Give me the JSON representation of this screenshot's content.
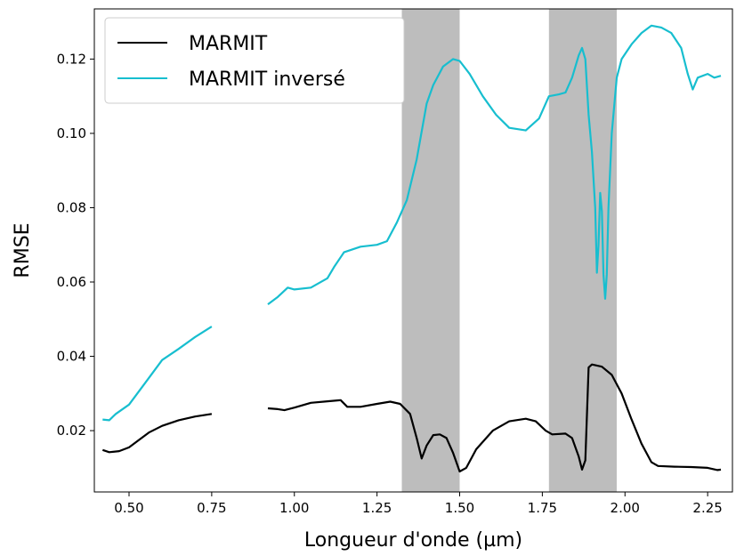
{
  "chart_data": {
    "type": "line",
    "xlabel": "Longueur d'onde (µm)",
    "ylabel": "RMSE",
    "xlim": [
      0.395,
      2.325
    ],
    "ylim": [
      0.0035,
      0.1335
    ],
    "xticks": [
      0.5,
      0.75,
      1.0,
      1.25,
      1.5,
      1.75,
      2.0,
      2.25
    ],
    "xtick_labels": [
      "0.50",
      "0.75",
      "1.00",
      "1.25",
      "1.50",
      "1.75",
      "2.00",
      "2.25"
    ],
    "yticks": [
      0.02,
      0.04,
      0.06,
      0.08,
      0.1,
      0.12
    ],
    "ytick_labels": [
      "0.02",
      "0.04",
      "0.06",
      "0.08",
      "0.10",
      "0.12"
    ],
    "legend_position": "top-left",
    "grid": false,
    "shaded_bands": [
      {
        "x0": 1.325,
        "x1": 1.5,
        "color": "#bdbdbd"
      },
      {
        "x0": 1.77,
        "x1": 1.975,
        "color": "#bdbdbd"
      }
    ],
    "series": [
      {
        "name": "MARMIT",
        "color": "#000000",
        "segments": [
          [
            [
              0.42,
              0.0148
            ],
            [
              0.44,
              0.0142
            ],
            [
              0.47,
              0.0145
            ],
            [
              0.5,
              0.0155
            ],
            [
              0.53,
              0.0175
            ],
            [
              0.56,
              0.0195
            ],
            [
              0.6,
              0.0213
            ],
            [
              0.65,
              0.0228
            ],
            [
              0.7,
              0.0238
            ],
            [
              0.75,
              0.0245
            ]
          ],
          [
            [
              0.92,
              0.026
            ],
            [
              0.95,
              0.0258
            ],
            [
              0.97,
              0.0255
            ],
            [
              1.0,
              0.0262
            ],
            [
              1.05,
              0.0275
            ],
            [
              1.1,
              0.0279
            ],
            [
              1.14,
              0.0282
            ],
            [
              1.16,
              0.0264
            ],
            [
              1.2,
              0.0264
            ],
            [
              1.25,
              0.0272
            ],
            [
              1.29,
              0.0278
            ],
            [
              1.32,
              0.0272
            ],
            [
              1.35,
              0.0245
            ],
            [
              1.37,
              0.018
            ],
            [
              1.385,
              0.0125
            ],
            [
              1.4,
              0.016
            ],
            [
              1.42,
              0.0188
            ],
            [
              1.44,
              0.019
            ],
            [
              1.46,
              0.018
            ],
            [
              1.48,
              0.014
            ],
            [
              1.5,
              0.009
            ],
            [
              1.52,
              0.01
            ],
            [
              1.55,
              0.015
            ],
            [
              1.6,
              0.02
            ],
            [
              1.65,
              0.0225
            ],
            [
              1.7,
              0.0232
            ],
            [
              1.73,
              0.0225
            ],
            [
              1.76,
              0.02
            ],
            [
              1.78,
              0.019
            ],
            [
              1.82,
              0.0192
            ],
            [
              1.84,
              0.018
            ],
            [
              1.86,
              0.013
            ],
            [
              1.87,
              0.0095
            ],
            [
              1.88,
              0.012
            ],
            [
              1.89,
              0.037
            ],
            [
              1.9,
              0.0378
            ],
            [
              1.93,
              0.0372
            ],
            [
              1.96,
              0.035
            ],
            [
              1.99,
              0.03
            ],
            [
              2.02,
              0.023
            ],
            [
              2.05,
              0.0165
            ],
            [
              2.08,
              0.0115
            ],
            [
              2.1,
              0.0105
            ],
            [
              2.15,
              0.0103
            ],
            [
              2.2,
              0.0102
            ],
            [
              2.25,
              0.01
            ],
            [
              2.28,
              0.0094
            ],
            [
              2.29,
              0.0095
            ]
          ]
        ]
      },
      {
        "name": "MARMIT inversé",
        "color": "#17becf",
        "segments": [
          [
            [
              0.42,
              0.023
            ],
            [
              0.44,
              0.0228
            ],
            [
              0.46,
              0.0245
            ],
            [
              0.5,
              0.027
            ],
            [
              0.55,
              0.033
            ],
            [
              0.6,
              0.039
            ],
            [
              0.65,
              0.042
            ],
            [
              0.7,
              0.0452
            ],
            [
              0.75,
              0.048
            ]
          ],
          [
            [
              0.92,
              0.054
            ],
            [
              0.95,
              0.056
            ],
            [
              0.98,
              0.0585
            ],
            [
              1.0,
              0.058
            ],
            [
              1.05,
              0.0585
            ],
            [
              1.1,
              0.061
            ],
            [
              1.12,
              0.064
            ],
            [
              1.15,
              0.068
            ],
            [
              1.2,
              0.0695
            ],
            [
              1.25,
              0.07
            ],
            [
              1.28,
              0.071
            ],
            [
              1.31,
              0.076
            ],
            [
              1.34,
              0.082
            ],
            [
              1.37,
              0.093
            ],
            [
              1.4,
              0.108
            ],
            [
              1.42,
              0.113
            ],
            [
              1.45,
              0.118
            ],
            [
              1.48,
              0.12
            ],
            [
              1.5,
              0.1195
            ],
            [
              1.53,
              0.116
            ],
            [
              1.57,
              0.11
            ],
            [
              1.61,
              0.105
            ],
            [
              1.65,
              0.1015
            ],
            [
              1.7,
              0.1008
            ],
            [
              1.74,
              0.104
            ],
            [
              1.77,
              0.11
            ],
            [
              1.8,
              0.1105
            ],
            [
              1.82,
              0.111
            ],
            [
              1.84,
              0.115
            ],
            [
              1.86,
              0.121
            ],
            [
              1.87,
              0.123
            ],
            [
              1.88,
              0.12
            ],
            [
              1.89,
              0.105
            ],
            [
              1.9,
              0.095
            ],
            [
              1.91,
              0.08
            ],
            [
              1.915,
              0.0625
            ],
            [
              1.92,
              0.07
            ],
            [
              1.925,
              0.084
            ],
            [
              1.93,
              0.079
            ],
            [
              1.935,
              0.062
            ],
            [
              1.94,
              0.0555
            ],
            [
              1.945,
              0.062
            ],
            [
              1.95,
              0.08
            ],
            [
              1.96,
              0.1
            ],
            [
              1.975,
              0.115
            ],
            [
              1.99,
              0.12
            ],
            [
              2.02,
              0.124
            ],
            [
              2.05,
              0.127
            ],
            [
              2.08,
              0.129
            ],
            [
              2.11,
              0.1285
            ],
            [
              2.14,
              0.127
            ],
            [
              2.17,
              0.123
            ],
            [
              2.19,
              0.116
            ],
            [
              2.205,
              0.1118
            ],
            [
              2.22,
              0.115
            ],
            [
              2.25,
              0.116
            ],
            [
              2.27,
              0.115
            ],
            [
              2.29,
              0.1155
            ]
          ]
        ]
      }
    ]
  }
}
